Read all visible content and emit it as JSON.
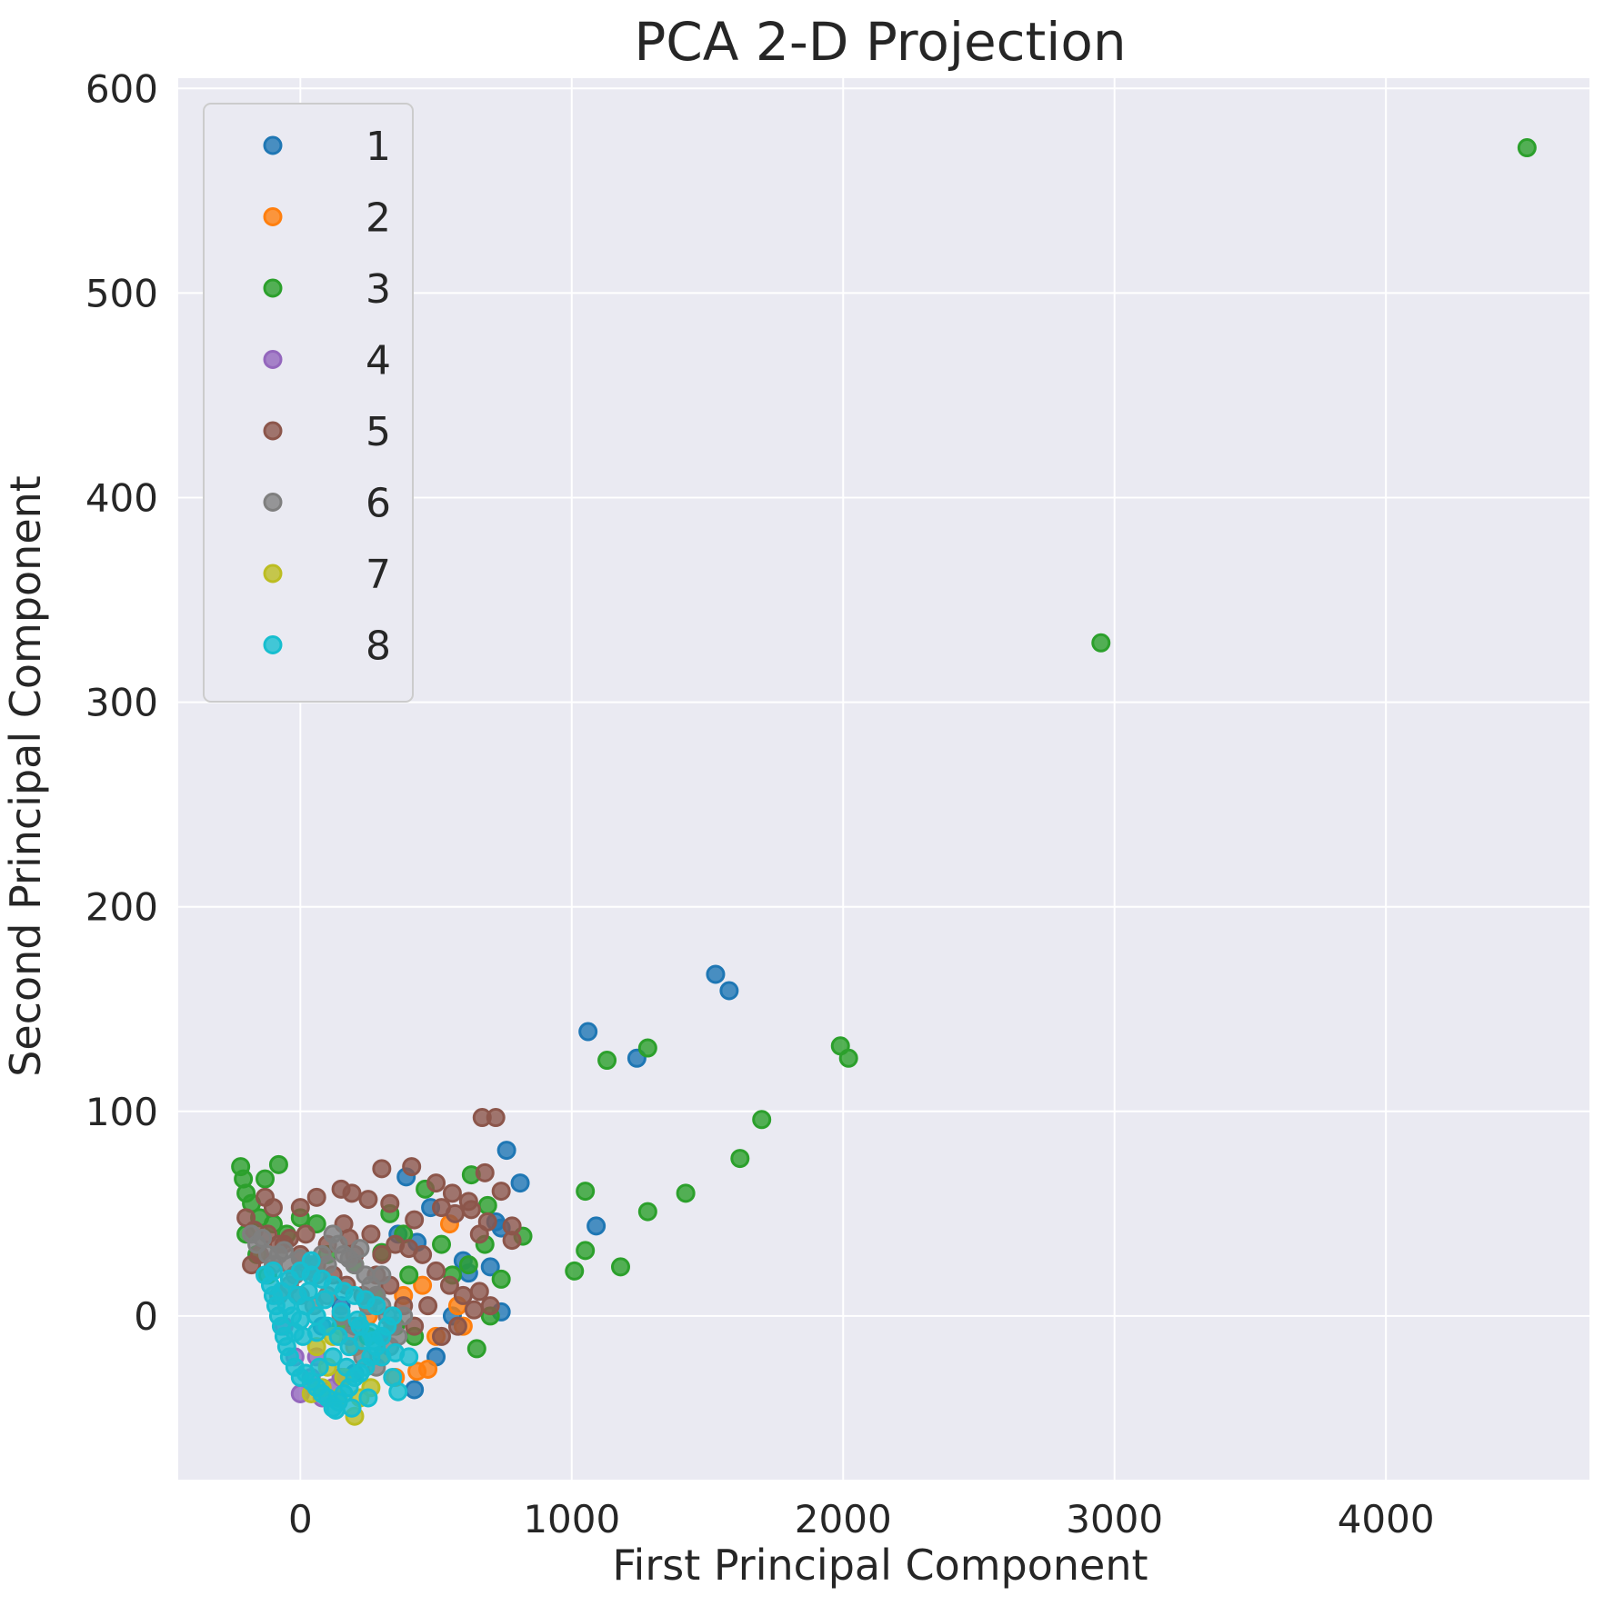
{
  "chart_data": {
    "type": "scatter",
    "title": "PCA 2-D Projection",
    "xlabel": "First Principal Component",
    "ylabel": "Second Principal Component",
    "xlim": [
      -450,
      4750
    ],
    "ylim": [
      -80,
      605
    ],
    "xticks": [
      0,
      1000,
      2000,
      3000,
      4000
    ],
    "yticks": [
      0,
      100,
      200,
      300,
      400,
      500,
      600
    ],
    "grid": true,
    "legend_position": "top-left",
    "series": [
      {
        "name": "1",
        "color": "#1f77b4",
        "points": [
          [
            1530,
            167
          ],
          [
            1580,
            159
          ],
          [
            1060,
            139
          ],
          [
            1240,
            126
          ],
          [
            1090,
            44
          ],
          [
            760,
            81
          ],
          [
            810,
            65
          ],
          [
            720,
            46
          ],
          [
            740,
            43
          ],
          [
            700,
            24
          ],
          [
            600,
            27
          ],
          [
            480,
            53
          ],
          [
            390,
            68
          ],
          [
            360,
            40
          ],
          [
            430,
            36
          ],
          [
            500,
            -20
          ],
          [
            420,
            -36
          ],
          [
            740,
            2
          ],
          [
            560,
            0
          ],
          [
            620,
            21
          ],
          [
            300,
            -10
          ],
          [
            200,
            -28
          ],
          [
            150,
            5
          ],
          [
            80,
            -5
          ]
        ]
      },
      {
        "name": "2",
        "color": "#ff7f0e",
        "points": [
          [
            430,
            -27
          ],
          [
            470,
            -26
          ],
          [
            550,
            45
          ],
          [
            580,
            5
          ],
          [
            500,
            -10
          ],
          [
            380,
            10
          ],
          [
            300,
            -20
          ],
          [
            250,
            0
          ],
          [
            200,
            -15
          ],
          [
            600,
            -5
          ],
          [
            450,
            15
          ],
          [
            350,
            -30
          ]
        ]
      },
      {
        "name": "3",
        "color": "#2ca02c",
        "points": [
          [
            4520,
            571
          ],
          [
            2950,
            329
          ],
          [
            1990,
            132
          ],
          [
            2020,
            126
          ],
          [
            1280,
            131
          ],
          [
            1130,
            125
          ],
          [
            1700,
            96
          ],
          [
            1620,
            77
          ],
          [
            1420,
            60
          ],
          [
            1050,
            61
          ],
          [
            1280,
            51
          ],
          [
            1180,
            24
          ],
          [
            1050,
            32
          ],
          [
            1010,
            22
          ],
          [
            820,
            39
          ],
          [
            740,
            18
          ],
          [
            650,
            -16
          ],
          [
            630,
            69
          ],
          [
            620,
            25
          ],
          [
            690,
            54
          ],
          [
            520,
            35
          ],
          [
            460,
            62
          ],
          [
            380,
            40
          ],
          [
            300,
            31
          ],
          [
            -80,
            74
          ],
          [
            -220,
            73
          ],
          [
            -210,
            67
          ],
          [
            -200,
            60
          ],
          [
            -180,
            55
          ],
          [
            -150,
            48
          ],
          [
            -130,
            67
          ],
          [
            -100,
            45
          ],
          [
            -50,
            40
          ],
          [
            0,
            48
          ],
          [
            60,
            45
          ],
          [
            100,
            30
          ],
          [
            200,
            25
          ],
          [
            280,
            10
          ],
          [
            350,
            -5
          ],
          [
            250,
            -10
          ],
          [
            150,
            -5
          ],
          [
            -200,
            40
          ],
          [
            -160,
            30
          ],
          [
            700,
            0
          ],
          [
            680,
            35
          ],
          [
            560,
            20
          ],
          [
            400,
            20
          ],
          [
            330,
            50
          ],
          [
            420,
            -10
          ],
          [
            -120,
            20
          ]
        ]
      },
      {
        "name": "4",
        "color": "#9467bd",
        "points": [
          [
            0,
            -38
          ],
          [
            40,
            -30
          ],
          [
            80,
            -40
          ],
          [
            -20,
            -20
          ],
          [
            120,
            -35
          ],
          [
            60,
            -20
          ],
          [
            -60,
            -5
          ],
          [
            150,
            -30
          ]
        ]
      },
      {
        "name": "5",
        "color": "#8c564b",
        "points": [
          [
            670,
            97
          ],
          [
            720,
            97
          ],
          [
            300,
            72
          ],
          [
            410,
            73
          ],
          [
            680,
            70
          ],
          [
            740,
            61
          ],
          [
            560,
            60
          ],
          [
            620,
            56
          ],
          [
            150,
            62
          ],
          [
            190,
            60
          ],
          [
            250,
            57
          ],
          [
            330,
            55
          ],
          [
            -130,
            58
          ],
          [
            -100,
            53
          ],
          [
            0,
            53
          ],
          [
            60,
            58
          ],
          [
            780,
            44
          ],
          [
            780,
            37
          ],
          [
            690,
            46
          ],
          [
            520,
            53
          ],
          [
            570,
            50
          ],
          [
            630,
            52
          ],
          [
            660,
            40
          ],
          [
            420,
            47
          ],
          [
            500,
            65
          ],
          [
            160,
            45
          ],
          [
            180,
            38
          ],
          [
            -200,
            48
          ],
          [
            -170,
            42
          ],
          [
            -120,
            40
          ],
          [
            -80,
            35
          ],
          [
            -40,
            38
          ],
          [
            20,
            40
          ],
          [
            100,
            35
          ],
          [
            200,
            30
          ],
          [
            260,
            40
          ],
          [
            300,
            30
          ],
          [
            350,
            35
          ],
          [
            400,
            33
          ],
          [
            450,
            30
          ],
          [
            500,
            22
          ],
          [
            550,
            15
          ],
          [
            600,
            10
          ],
          [
            660,
            12
          ],
          [
            700,
            5
          ],
          [
            640,
            3
          ],
          [
            580,
            -5
          ],
          [
            520,
            -10
          ],
          [
            470,
            5
          ],
          [
            420,
            -5
          ],
          [
            380,
            5
          ],
          [
            330,
            15
          ],
          [
            280,
            20
          ],
          [
            230,
            10
          ],
          [
            170,
            15
          ],
          [
            120,
            20
          ],
          [
            60,
            25
          ],
          [
            0,
            30
          ],
          [
            -60,
            35
          ],
          [
            -150,
            30
          ],
          [
            -180,
            25
          ]
        ]
      },
      {
        "name": "6",
        "color": "#7f7f7f",
        "points": [
          [
            -180,
            40
          ],
          [
            -160,
            35
          ],
          [
            -140,
            38
          ],
          [
            -120,
            30
          ],
          [
            -100,
            25
          ],
          [
            -80,
            30
          ],
          [
            -60,
            32
          ],
          [
            -40,
            25
          ],
          [
            -20,
            20
          ],
          [
            0,
            28
          ],
          [
            20,
            22
          ],
          [
            40,
            25
          ],
          [
            60,
            20
          ],
          [
            80,
            30
          ],
          [
            100,
            25
          ],
          [
            120,
            40
          ],
          [
            140,
            35
          ],
          [
            160,
            30
          ],
          [
            180,
            28
          ],
          [
            200,
            25
          ],
          [
            220,
            33
          ],
          [
            240,
            20
          ],
          [
            260,
            15
          ],
          [
            280,
            10
          ],
          [
            300,
            5
          ],
          [
            320,
            0
          ],
          [
            340,
            -5
          ],
          [
            360,
            -10
          ],
          [
            300,
            20
          ],
          [
            250,
            5
          ],
          [
            200,
            -5
          ],
          [
            150,
            0
          ],
          [
            100,
            10
          ],
          [
            50,
            5
          ],
          [
            0,
            10
          ],
          [
            -40,
            15
          ],
          [
            -80,
            10
          ],
          [
            380,
            0
          ],
          [
            330,
            -15
          ],
          [
            280,
            -25
          ],
          [
            230,
            -20
          ],
          [
            180,
            -10
          ]
        ]
      },
      {
        "name": "7",
        "color": "#bcbd22",
        "points": [
          [
            200,
            -49
          ],
          [
            140,
            -40
          ],
          [
            80,
            -35
          ],
          [
            40,
            -38
          ],
          [
            160,
            -30
          ],
          [
            100,
            -25
          ],
          [
            220,
            -40
          ],
          [
            260,
            -35
          ],
          [
            60,
            -15
          ],
          [
            120,
            -10
          ]
        ]
      },
      {
        "name": "8",
        "color": "#17becf",
        "points": [
          [
            -130,
            20
          ],
          [
            -110,
            15
          ],
          [
            -100,
            10
          ],
          [
            -90,
            5
          ],
          [
            -80,
            0
          ],
          [
            -70,
            -5
          ],
          [
            -60,
            -10
          ],
          [
            -50,
            -15
          ],
          [
            -40,
            -20
          ],
          [
            -20,
            -25
          ],
          [
            0,
            -30
          ],
          [
            20,
            -28
          ],
          [
            40,
            -32
          ],
          [
            60,
            -35
          ],
          [
            80,
            -38
          ],
          [
            100,
            -40
          ],
          [
            120,
            -45
          ],
          [
            140,
            -42
          ],
          [
            160,
            -38
          ],
          [
            180,
            -35
          ],
          [
            200,
            -30
          ],
          [
            220,
            -28
          ],
          [
            240,
            -25
          ],
          [
            260,
            -20
          ],
          [
            280,
            -15
          ],
          [
            300,
            -10
          ],
          [
            320,
            -5
          ],
          [
            340,
            0
          ],
          [
            280,
            5
          ],
          [
            240,
            8
          ],
          [
            200,
            10
          ],
          [
            160,
            12
          ],
          [
            120,
            15
          ],
          [
            80,
            18
          ],
          [
            40,
            20
          ],
          [
            0,
            22
          ],
          [
            -40,
            18
          ],
          [
            -70,
            12
          ],
          [
            -100,
            22
          ],
          [
            40,
            27
          ],
          [
            20,
            5
          ],
          [
            60,
            0
          ],
          [
            100,
            -5
          ],
          [
            140,
            -10
          ],
          [
            180,
            -15
          ],
          [
            220,
            -5
          ],
          [
            260,
            -8
          ],
          [
            300,
            -20
          ],
          [
            350,
            -18
          ],
          [
            400,
            -20
          ],
          [
            340,
            -30
          ],
          [
            250,
            -40
          ],
          [
            360,
            -37
          ],
          [
            190,
            -45
          ],
          [
            130,
            -46
          ],
          [
            70,
            -25
          ],
          [
            10,
            -10
          ],
          [
            -30,
            0
          ],
          [
            -10,
            10
          ],
          [
            30,
            12
          ],
          [
            90,
            8
          ],
          [
            150,
            2
          ],
          [
            210,
            -2
          ],
          [
            270,
            -12
          ],
          [
            120,
            -20
          ],
          [
            60,
            -8
          ],
          [
            0,
            -2
          ],
          [
            -50,
            5
          ],
          [
            -20,
            -8
          ],
          [
            170,
            -25
          ],
          [
            230,
            -12
          ]
        ]
      }
    ]
  }
}
